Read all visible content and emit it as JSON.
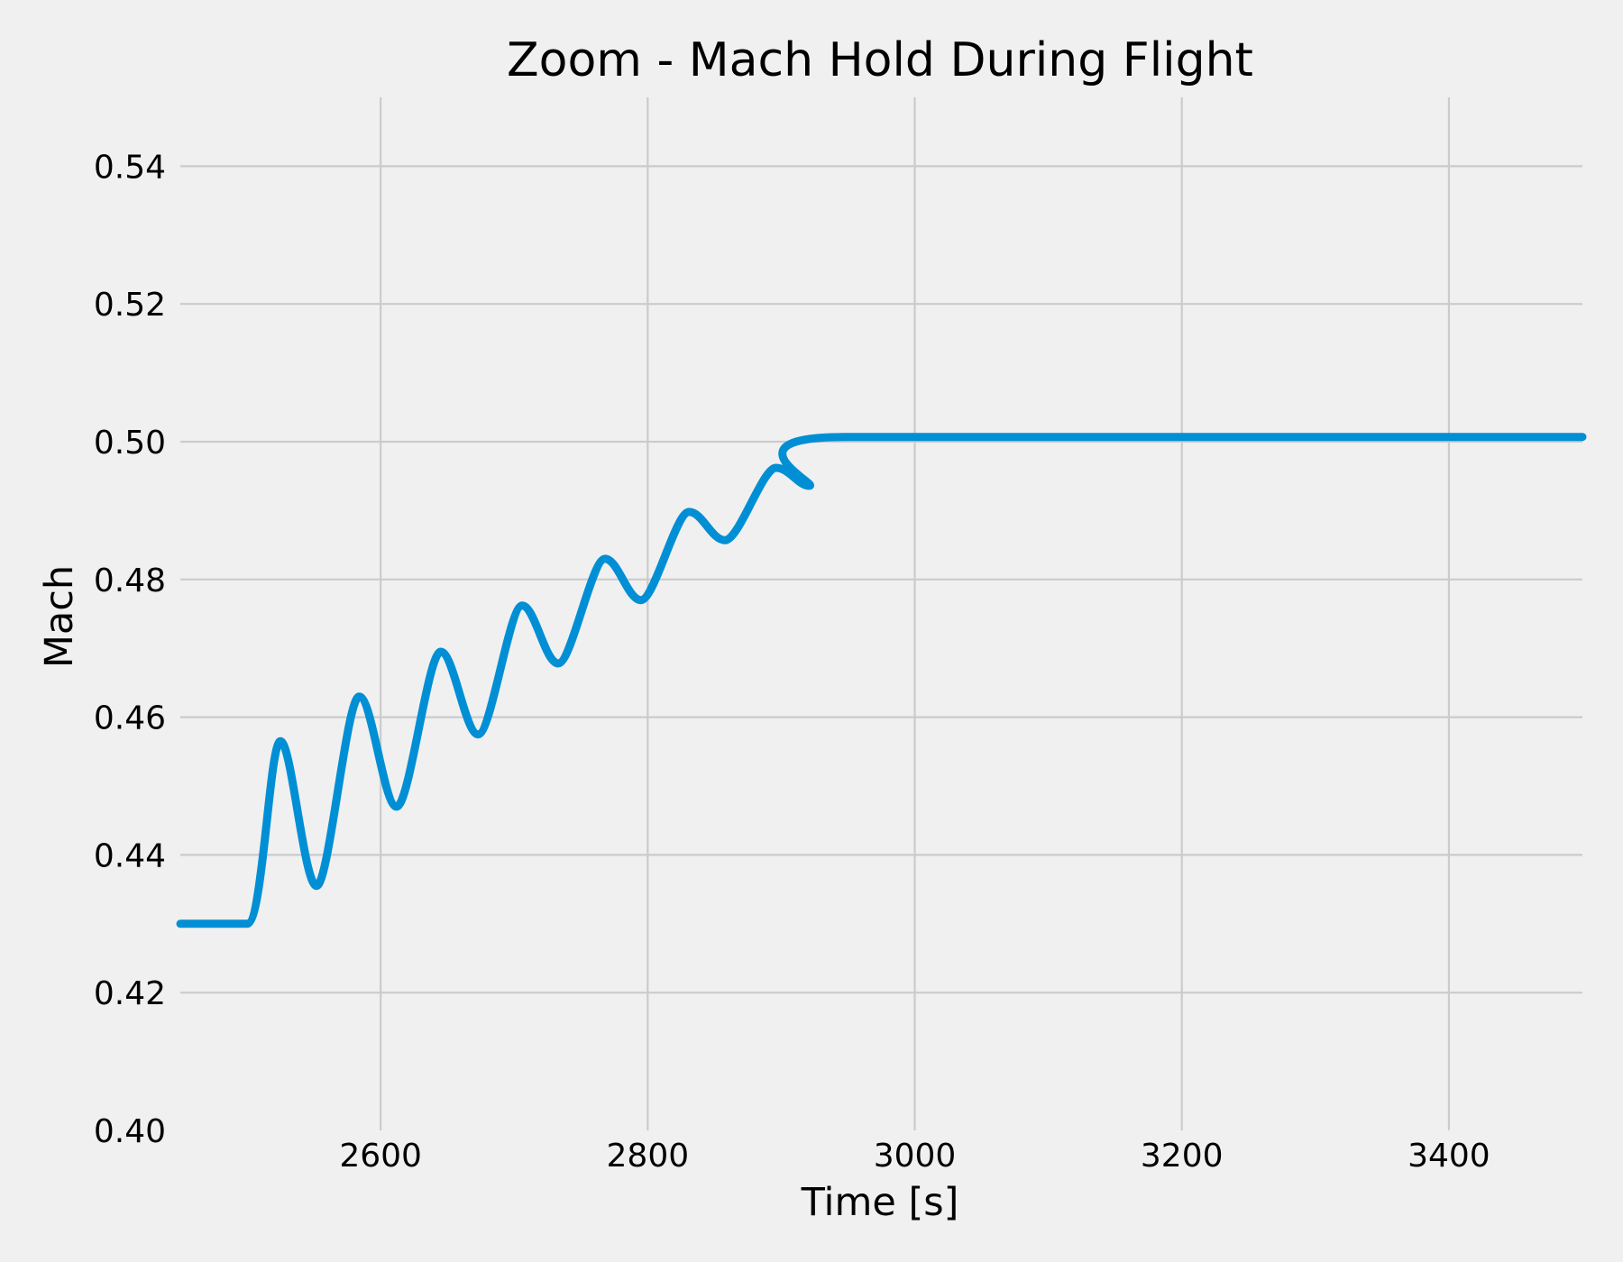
{
  "chart_data": {
    "type": "line",
    "title": "Zoom - Mach Hold During Flight",
    "xlabel": "Time [s]",
    "ylabel": "Mach",
    "xlim": [
      2450,
      3500
    ],
    "ylim": [
      0.4,
      0.55
    ],
    "xticks": [
      2600,
      2800,
      3000,
      3200,
      3400
    ],
    "xtick_labels": [
      "2600",
      "2800",
      "3000",
      "3200",
      "3400"
    ],
    "yticks": [
      0.4,
      0.42,
      0.44,
      0.46,
      0.48,
      0.5,
      0.52,
      0.54
    ],
    "ytick_labels": [
      "0.40",
      "0.42",
      "0.44",
      "0.46",
      "0.48",
      "0.50",
      "0.52",
      "0.54"
    ],
    "grid": true,
    "color": "#008fd5",
    "series": [
      {
        "x": [
          2450,
          2500,
          2525,
          2552,
          2584,
          2612,
          2645,
          2673,
          2706,
          2733,
          2768,
          2795,
          2831,
          2858,
          2896,
          2921,
          2948,
          3500
        ],
        "y": [
          0.43,
          0.43,
          0.4565,
          0.4355,
          0.463,
          0.447,
          0.4695,
          0.4575,
          0.4762,
          0.4678,
          0.483,
          0.477,
          0.4898,
          0.4857,
          0.4962,
          0.4936,
          0.5007,
          0.5007
        ]
      }
    ]
  }
}
